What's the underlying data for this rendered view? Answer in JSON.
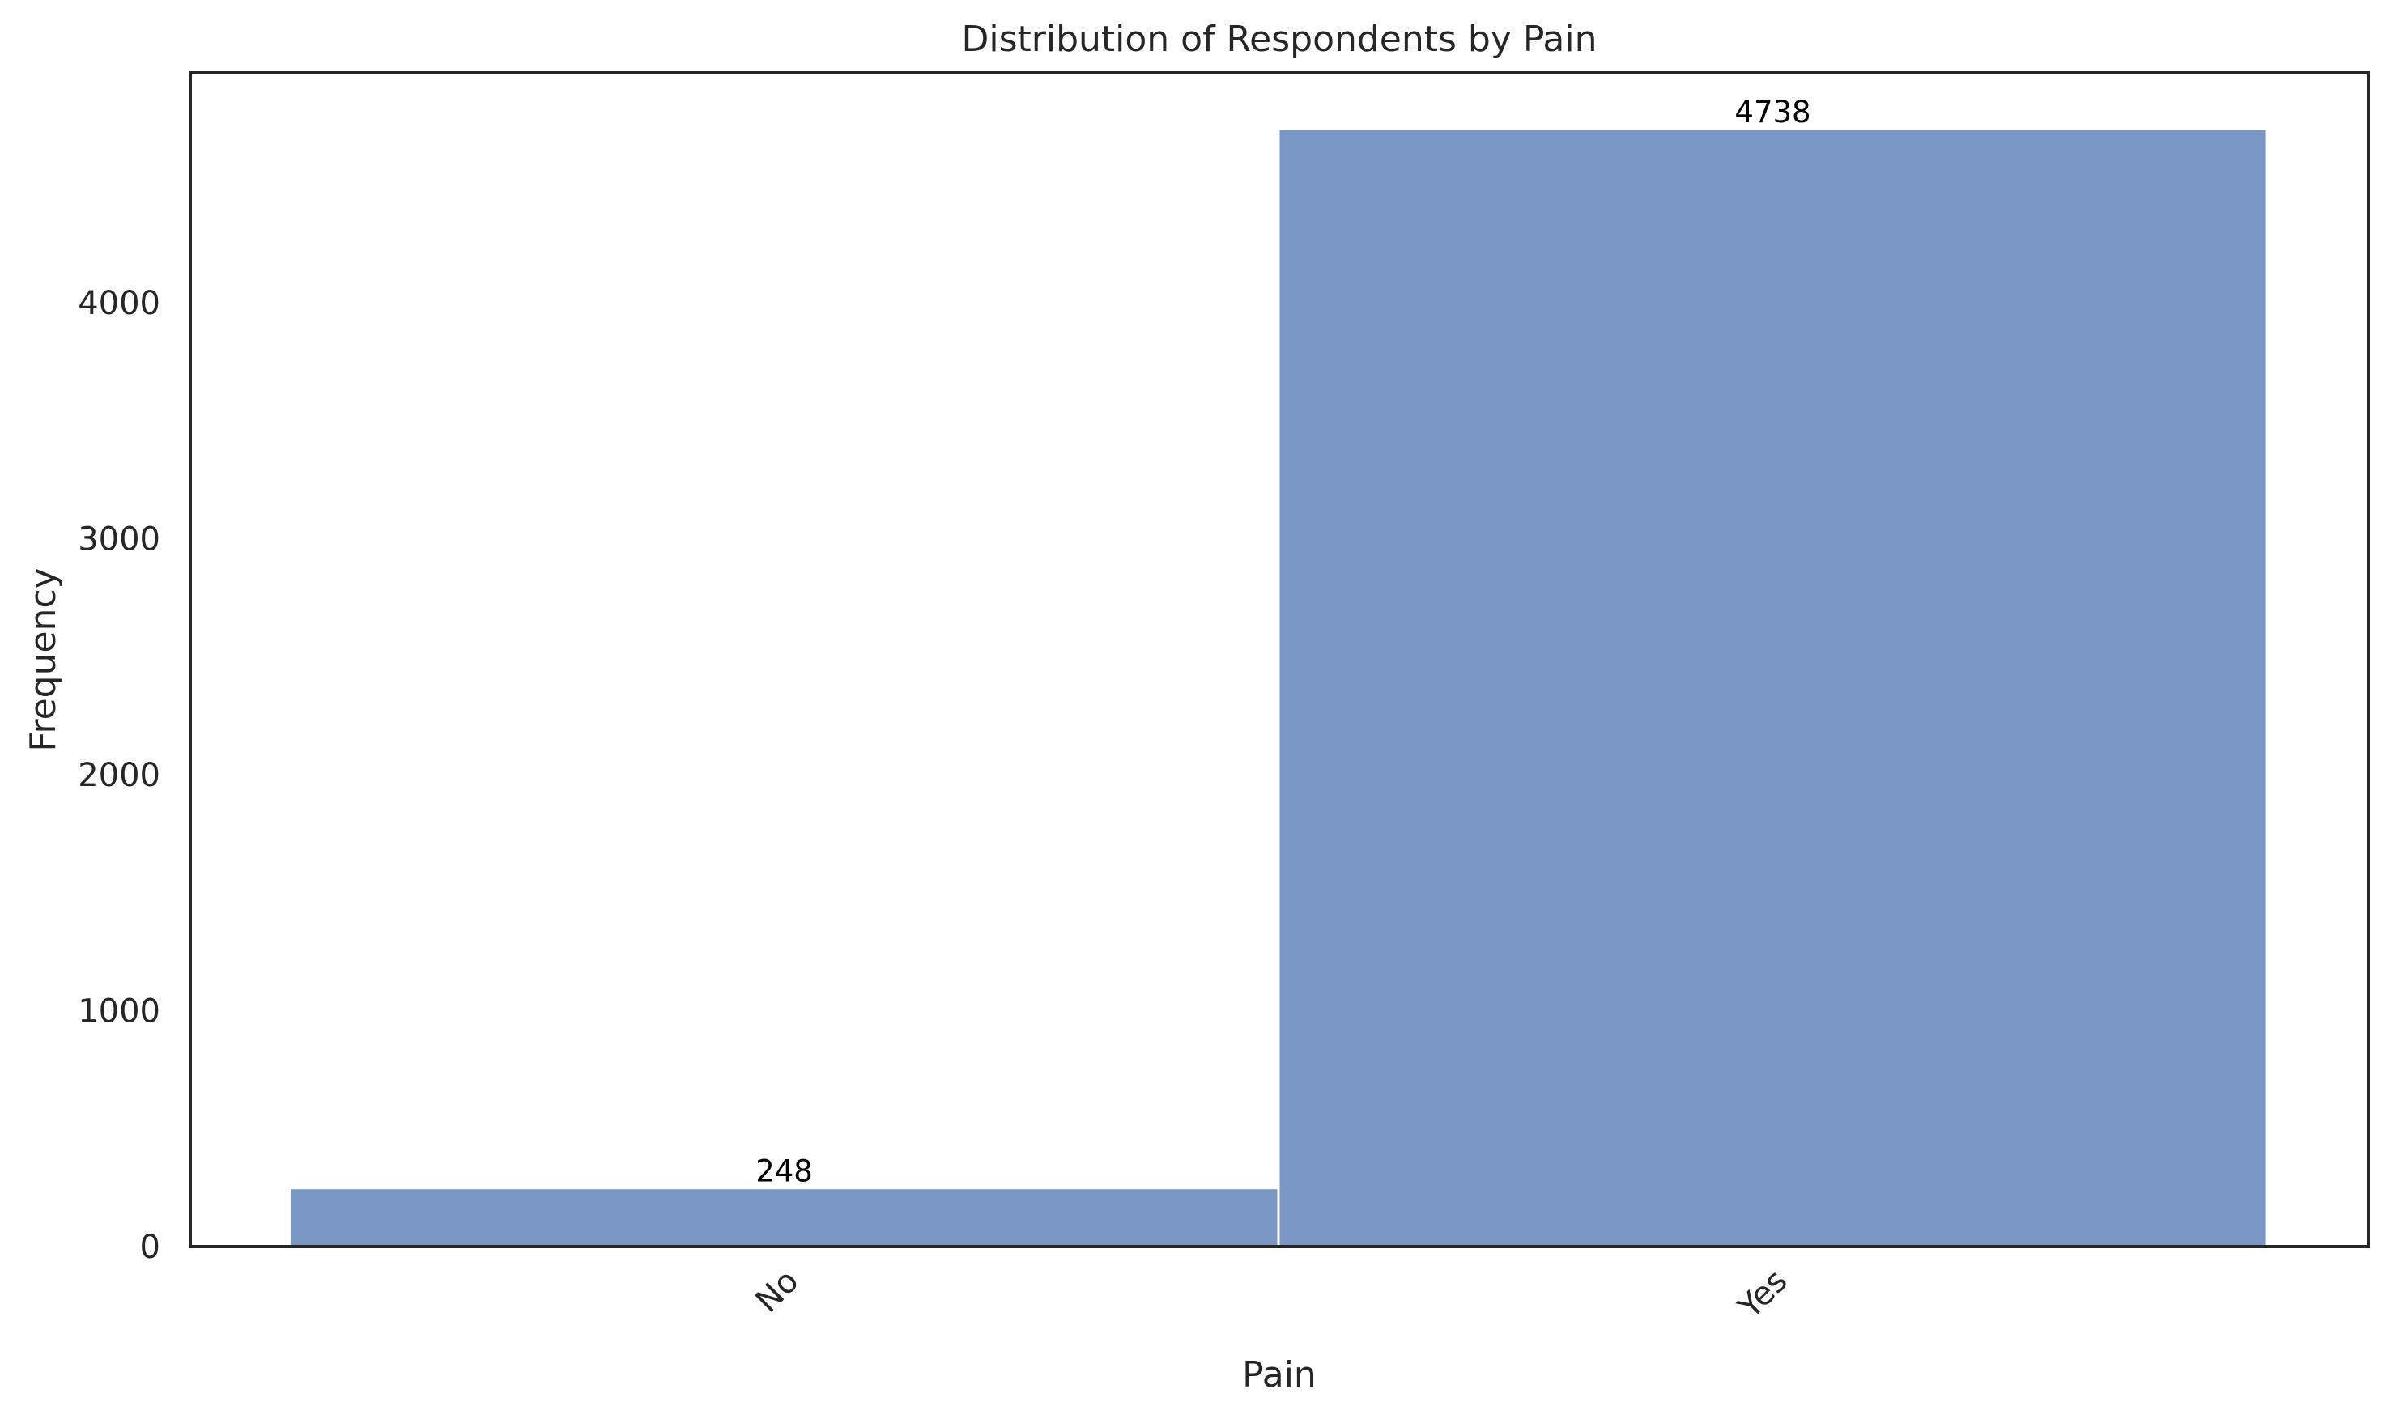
{
  "chart_data": {
    "type": "bar",
    "title": "Distribution of Respondents by Pain",
    "xlabel": "Pain",
    "ylabel": "Frequency",
    "categories": [
      "No",
      "Yes"
    ],
    "values": [
      248,
      4738
    ],
    "data_labels": [
      "248",
      "4738"
    ],
    "ylim": [
      0,
      4975
    ],
    "yticks": [
      0,
      1000,
      2000,
      3000,
      4000
    ],
    "ytick_labels": [
      "0",
      "1000",
      "2000",
      "3000",
      "4000"
    ],
    "bar_color": "#7a96c4",
    "grid": false,
    "legend": "none"
  }
}
